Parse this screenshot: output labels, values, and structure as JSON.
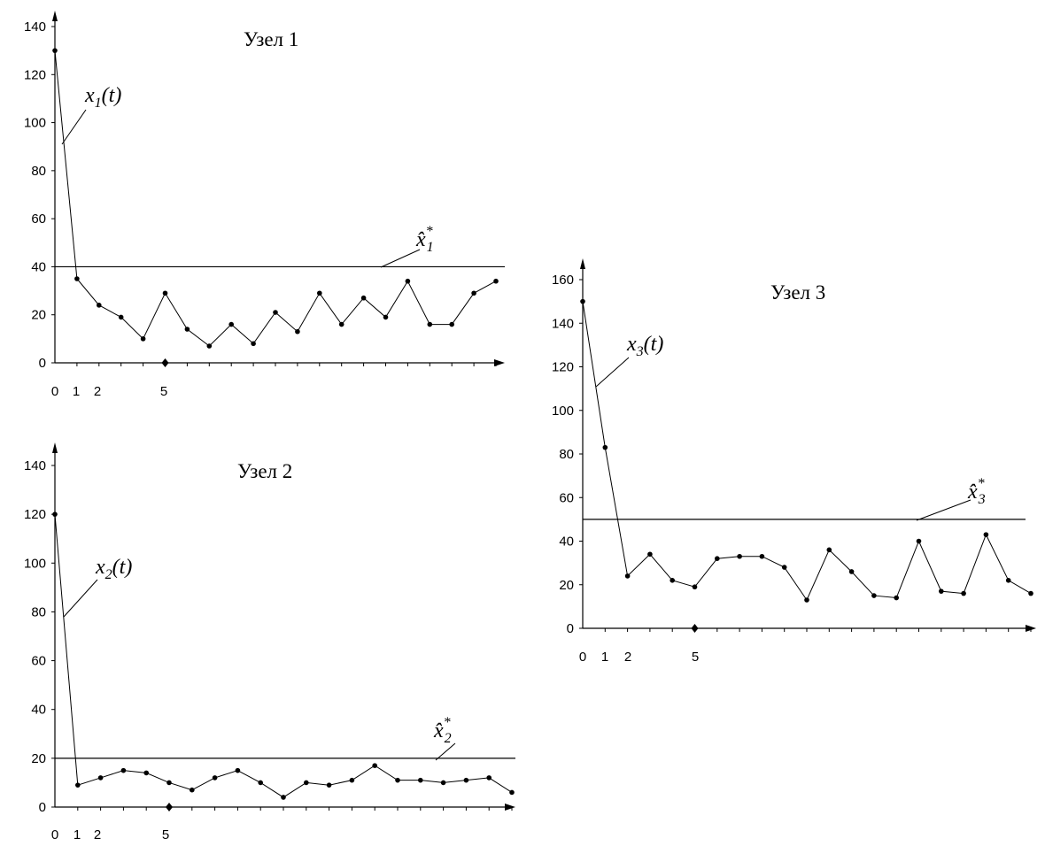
{
  "chart_data": [
    {
      "type": "line",
      "title": "Узел 1",
      "x_ticks": [
        "0",
        "1",
        "2",
        "5"
      ],
      "x_tick_values": [
        0,
        1,
        2,
        5
      ],
      "y_ticks": [
        "0",
        "20",
        "40",
        "60",
        "80",
        "100",
        "120",
        "140"
      ],
      "ylim": [
        0,
        140
      ],
      "x": [
        0,
        1,
        2,
        3,
        4,
        5,
        6,
        7,
        8,
        9,
        10,
        11,
        12,
        13,
        14,
        15,
        16,
        17,
        18,
        19,
        20
      ],
      "values": [
        130,
        35,
        24,
        19,
        10,
        29,
        14,
        7,
        16,
        8,
        21,
        13,
        29,
        16,
        27,
        19,
        34,
        16,
        16,
        29,
        34
      ],
      "series_label": {
        "base": "x",
        "sub": "1",
        "arg": "(t)"
      },
      "threshold": {
        "value": 40,
        "base": "x̂",
        "sup": "*",
        "sub": "1"
      }
    },
    {
      "type": "line",
      "title": "Узел 2",
      "x_ticks": [
        "0",
        "1",
        "2",
        "5"
      ],
      "x_tick_values": [
        0,
        1,
        2,
        5
      ],
      "y_ticks": [
        "0",
        "20",
        "40",
        "60",
        "80",
        "100",
        "120",
        "140"
      ],
      "ylim": [
        0,
        140
      ],
      "x": [
        0,
        1,
        2,
        3,
        4,
        5,
        6,
        7,
        8,
        9,
        10,
        11,
        12,
        13,
        14,
        15,
        16,
        17,
        18,
        19,
        20
      ],
      "values": [
        120,
        9,
        12,
        15,
        14,
        10,
        7,
        12,
        15,
        10,
        4,
        10,
        9,
        11,
        17,
        11,
        11,
        10,
        11,
        12,
        6
      ],
      "series_label": {
        "base": "x",
        "sub": "2",
        "arg": "(t)"
      },
      "threshold": {
        "value": 20,
        "base": "x̂",
        "sup": "*",
        "sub": "2"
      }
    },
    {
      "type": "line",
      "title": "Узел 3",
      "x_ticks": [
        "0",
        "1",
        "2",
        "5"
      ],
      "x_tick_values": [
        0,
        1,
        2,
        5
      ],
      "y_ticks": [
        "0",
        "20",
        "40",
        "60",
        "80",
        "100",
        "120",
        "140",
        "160"
      ],
      "ylim": [
        0,
        160
      ],
      "x": [
        0,
        1,
        2,
        3,
        4,
        5,
        6,
        7,
        8,
        9,
        10,
        11,
        12,
        13,
        14,
        15,
        16,
        17,
        18,
        19,
        20
      ],
      "values": [
        150,
        83,
        24,
        34,
        22,
        19,
        32,
        33,
        33,
        28,
        13,
        36,
        26,
        15,
        14,
        40,
        17,
        16,
        43,
        22,
        16
      ],
      "series_label": {
        "base": "x",
        "sub": "3",
        "arg": "(t)"
      },
      "threshold": {
        "value": 50,
        "base": "x̂",
        "sup": "*",
        "sub": "3"
      }
    }
  ]
}
